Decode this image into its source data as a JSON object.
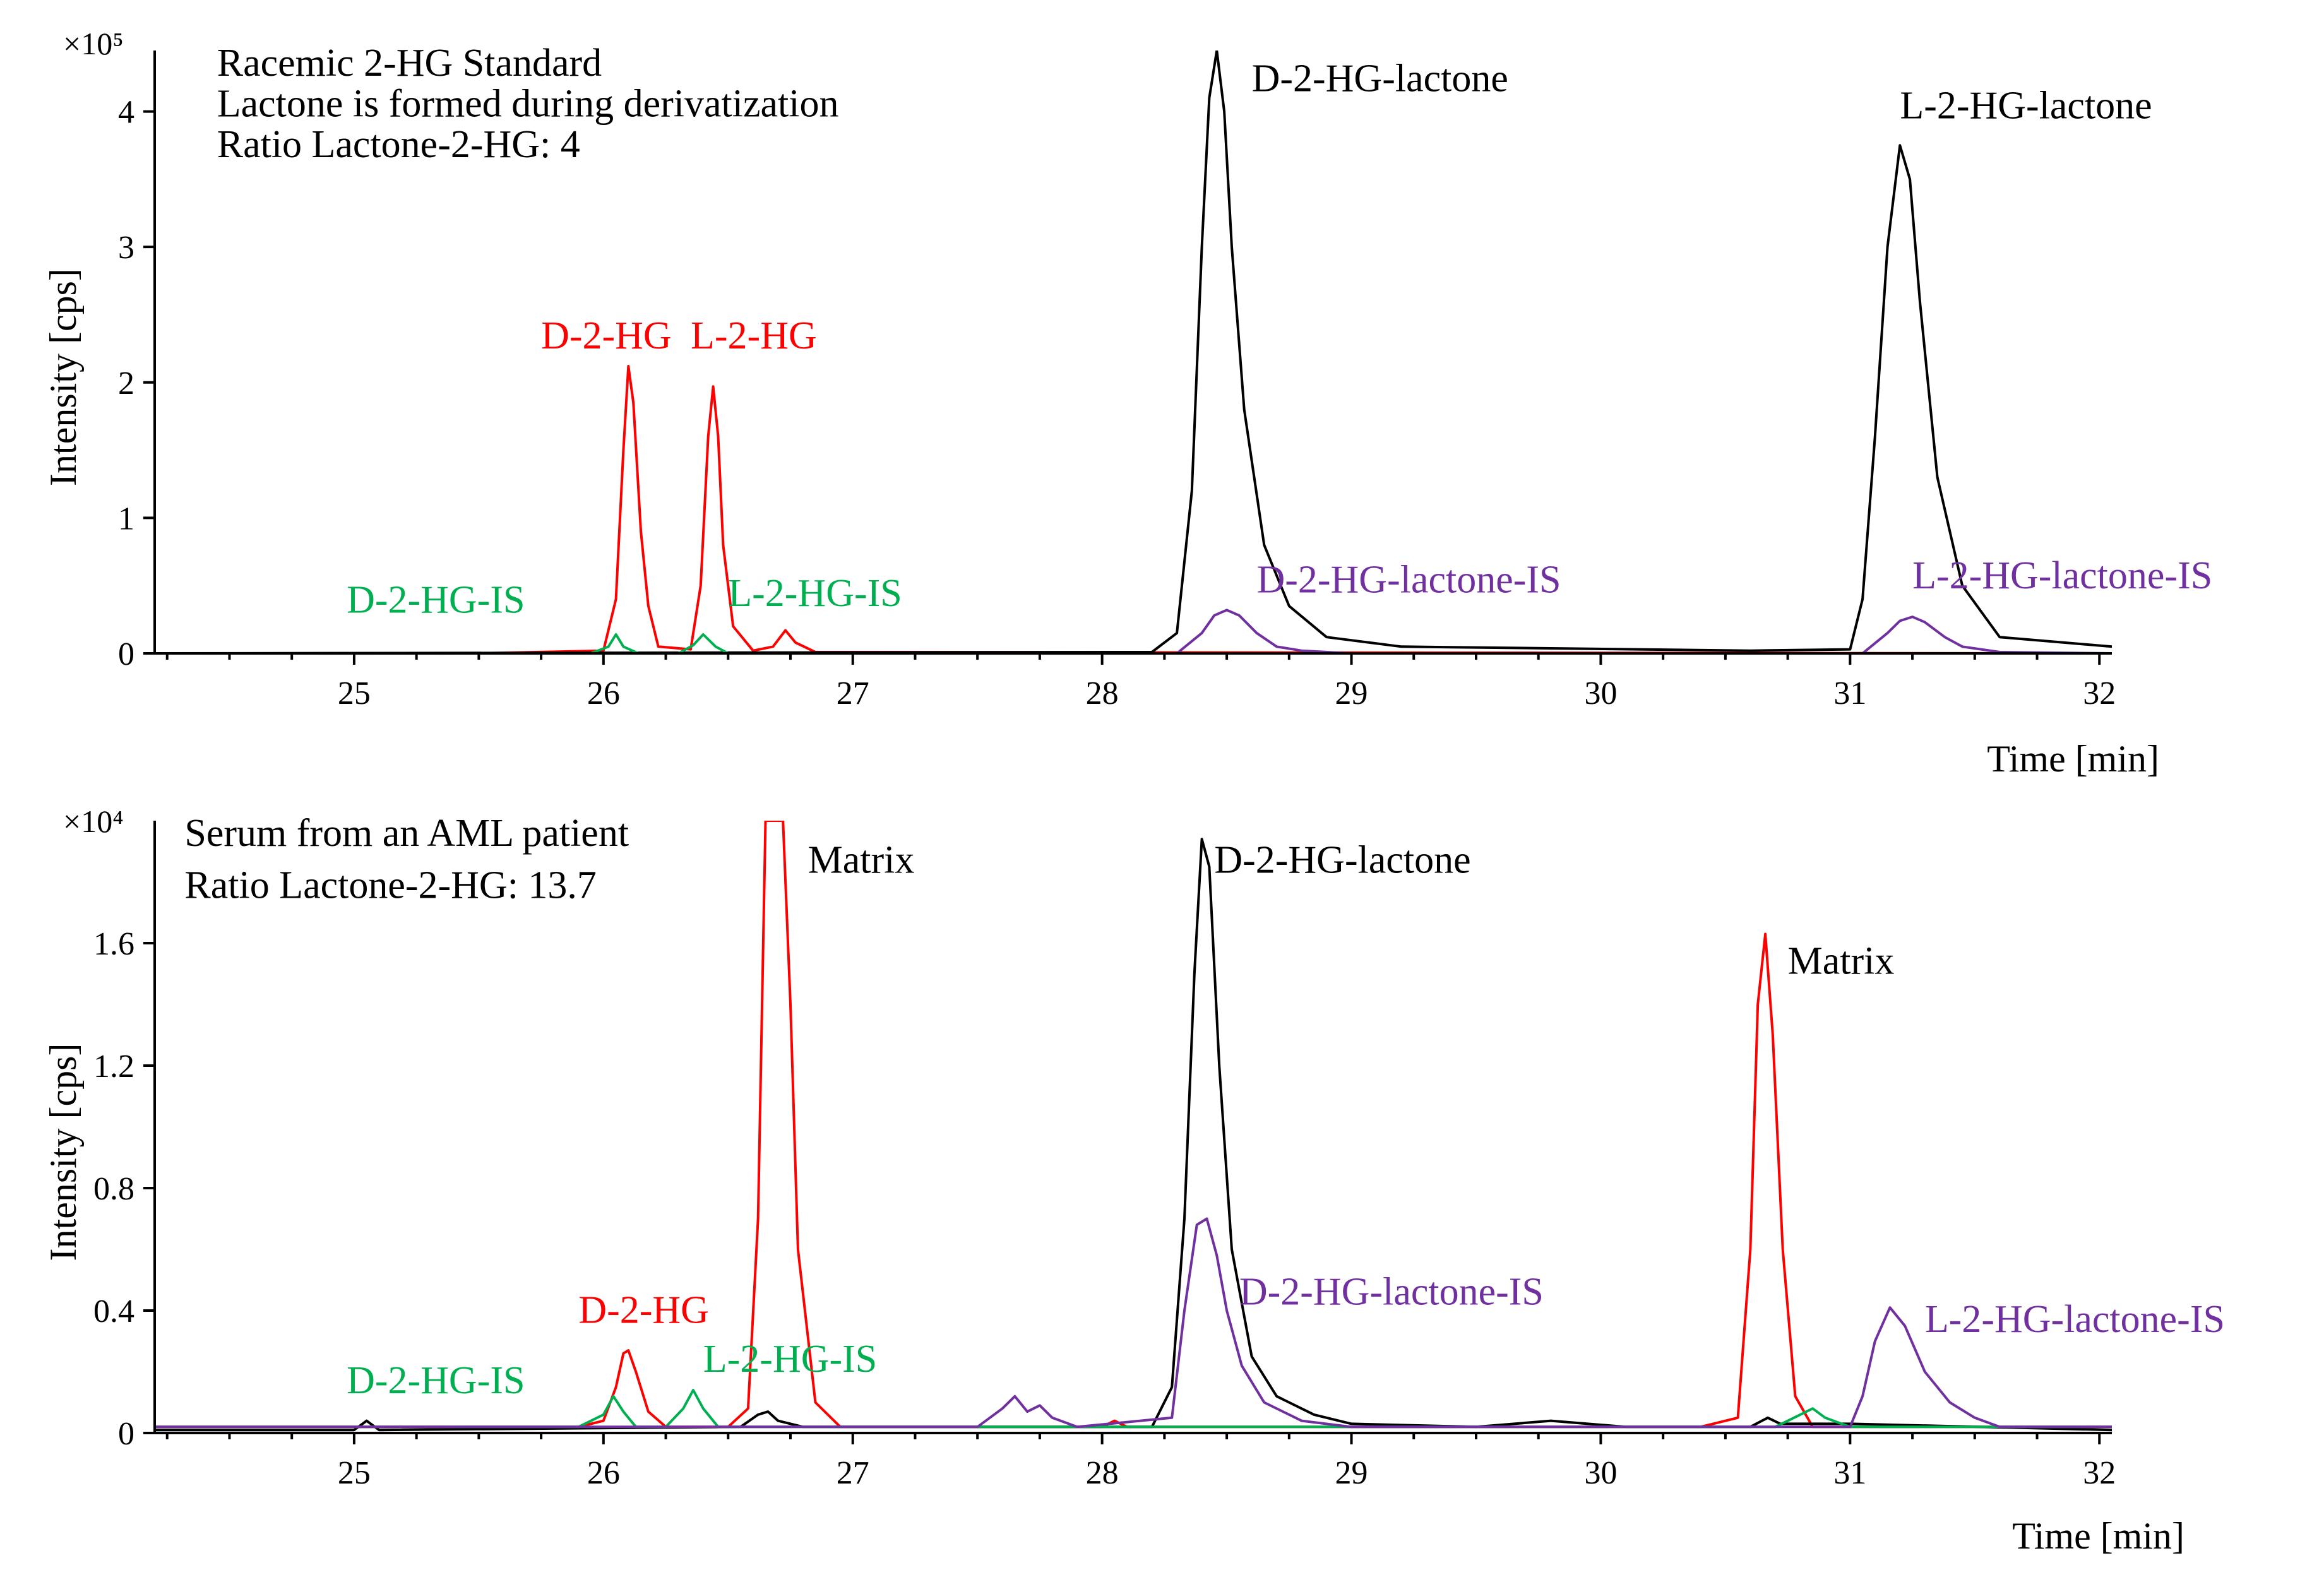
{
  "chart_data": [
    {
      "type": "line",
      "multiplier": "×10⁵",
      "xlabel": "Time [min]",
      "ylabel": "Intensity [cps]",
      "xlim": [
        24.2,
        32.05
      ],
      "ylim": [
        0,
        4.45
      ],
      "xticks": [
        25,
        26,
        27,
        28,
        29,
        30,
        31,
        32
      ],
      "yticks": [
        0,
        1,
        2,
        3,
        4
      ],
      "ytick_labels": [
        "0",
        "1",
        "2",
        "3",
        "4"
      ],
      "texts": [
        {
          "text": "Racemic 2-HG Standard",
          "color": "#000000",
          "x": 24.45,
          "y": 4.45
        },
        {
          "text": "Lactone is formed during derivatization",
          "color": "#000000",
          "x": 24.45,
          "y": 4.15
        },
        {
          "text": "Ratio Lactone-2-HG: 4",
          "color": "#000000",
          "x": 24.45,
          "y": 3.85
        }
      ],
      "annotations": [
        {
          "text": "D-2-HG",
          "color": "#ff0000",
          "x": 25.75,
          "y": 2.25
        },
        {
          "text": "L-2-HG",
          "color": "#ff0000",
          "x": 26.35,
          "y": 2.25
        },
        {
          "text": "D-2-HG-IS",
          "color": "#00b050",
          "x": 24.97,
          "y": 0.3
        },
        {
          "text": "L-2-HG-IS",
          "color": "#00b050",
          "x": 26.5,
          "y": 0.35
        },
        {
          "text": "D-2-HG-lactone",
          "color": "#000000",
          "x": 28.6,
          "y": 4.15
        },
        {
          "text": "L-2-HG-lactone",
          "color": "#000000",
          "x": 31.2,
          "y": 3.95
        },
        {
          "text": "D-2-HG-lactone-IS",
          "color": "#7030a0",
          "x": 28.62,
          "y": 0.45
        },
        {
          "text": "L-2-HG-lactone-IS",
          "color": "#7030a0",
          "x": 31.25,
          "y": 0.48
        }
      ],
      "series": [
        {
          "color": "#ff0000",
          "x": [
            24.2,
            25.5,
            26.0,
            26.05,
            26.08,
            26.1,
            26.12,
            26.15,
            26.18,
            26.22,
            26.35,
            26.39,
            26.42,
            26.44,
            26.46,
            26.48,
            26.52,
            26.6,
            26.68,
            26.73,
            26.77,
            26.85,
            32.05
          ],
          "y": [
            0.0,
            0.0,
            0.02,
            0.4,
            1.5,
            2.12,
            1.85,
            0.9,
            0.35,
            0.05,
            0.03,
            0.5,
            1.6,
            1.97,
            1.6,
            0.8,
            0.2,
            0.02,
            0.05,
            0.17,
            0.08,
            0.01,
            0.0
          ]
        },
        {
          "color": "#000000",
          "x": [
            24.2,
            28.2,
            28.3,
            28.36,
            28.4,
            28.43,
            28.46,
            28.49,
            28.52,
            28.57,
            28.65,
            28.75,
            28.9,
            29.2,
            30.6,
            31.0,
            31.05,
            31.1,
            31.15,
            31.2,
            31.24,
            31.28,
            31.35,
            31.45,
            31.6,
            32.05
          ],
          "y": [
            0.0,
            0.01,
            0.15,
            1.2,
            3.0,
            4.1,
            4.45,
            4.0,
            3.0,
            1.8,
            0.8,
            0.35,
            0.12,
            0.05,
            0.02,
            0.03,
            0.4,
            1.6,
            3.0,
            3.75,
            3.5,
            2.6,
            1.3,
            0.5,
            0.12,
            0.05
          ]
        },
        {
          "color": "#00b050",
          "x": [
            24.2,
            25.95,
            26.02,
            26.05,
            26.08,
            26.14,
            26.3,
            26.36,
            26.4,
            26.45,
            26.5,
            32.05
          ],
          "y": [
            0.0,
            0.0,
            0.05,
            0.14,
            0.05,
            0.0,
            0.0,
            0.06,
            0.14,
            0.05,
            0.0,
            0.0
          ]
        },
        {
          "color": "#7030a0",
          "x": [
            24.2,
            28.3,
            28.4,
            28.45,
            28.5,
            28.55,
            28.62,
            28.7,
            28.8,
            29.0,
            31.05,
            31.15,
            31.2,
            31.25,
            31.3,
            31.38,
            31.45,
            31.6,
            32.05
          ],
          "y": [
            0.0,
            0.0,
            0.15,
            0.28,
            0.32,
            0.28,
            0.15,
            0.05,
            0.02,
            0.0,
            0.0,
            0.15,
            0.24,
            0.27,
            0.23,
            0.12,
            0.05,
            0.01,
            0.0
          ]
        }
      ]
    },
    {
      "type": "line",
      "multiplier": "×10⁴",
      "xlabel": "Time [min]",
      "ylabel": "Intensity [cps]",
      "xlim": [
        24.2,
        32.05
      ],
      "ylim": [
        0,
        2.0
      ],
      "xticks": [
        25,
        26,
        27,
        28,
        29,
        30,
        31,
        32
      ],
      "yticks": [
        0,
        0.4,
        0.8,
        1.2,
        1.6
      ],
      "ytick_labels": [
        "0",
        "0.4",
        "0.8",
        "1.2",
        "1.6"
      ],
      "texts": [
        {
          "text": "Serum from an AML patient",
          "color": "#000000",
          "x": 24.32,
          "y": 2.0
        },
        {
          "text": "Ratio Lactone-2-HG: 13.7",
          "color": "#000000",
          "x": 24.32,
          "y": 1.83
        }
      ],
      "annotations": [
        {
          "text": "D-2-HG",
          "color": "#ff0000",
          "x": 25.9,
          "y": 0.36
        },
        {
          "text": "D-2-HG-IS",
          "color": "#00b050",
          "x": 24.97,
          "y": 0.13
        },
        {
          "text": "L-2-HG-IS",
          "color": "#00b050",
          "x": 26.4,
          "y": 0.2
        },
        {
          "text": "Matrix",
          "color": "#000000",
          "x": 26.82,
          "y": 1.83
        },
        {
          "text": "D-2-HG-lactone",
          "color": "#000000",
          "x": 28.45,
          "y": 1.83
        },
        {
          "text": "Matrix",
          "color": "#000000",
          "x": 30.75,
          "y": 1.5
        },
        {
          "text": "D-2-HG-lactone-IS",
          "color": "#7030a0",
          "x": 28.55,
          "y": 0.42
        },
        {
          "text": "L-2-HG-lactone-IS",
          "color": "#7030a0",
          "x": 31.3,
          "y": 0.33
        }
      ],
      "series": [
        {
          "color": "#ff0000",
          "x": [
            24.2,
            25.0,
            25.9,
            26.0,
            26.05,
            26.08,
            26.1,
            26.13,
            26.18,
            26.25,
            26.5,
            26.58,
            26.62,
            26.65,
            26.68,
            26.72,
            26.75,
            26.78,
            26.85,
            26.95,
            28.0,
            28.05,
            28.1,
            30.4,
            30.55,
            30.6,
            30.63,
            30.66,
            30.69,
            30.73,
            30.78,
            30.85,
            32.05
          ],
          "y": [
            0.02,
            0.02,
            0.02,
            0.04,
            0.15,
            0.26,
            0.27,
            0.2,
            0.07,
            0.02,
            0.02,
            0.08,
            0.7,
            2.0,
            2.0,
            2.0,
            1.4,
            0.6,
            0.1,
            0.02,
            0.02,
            0.04,
            0.02,
            0.02,
            0.05,
            0.6,
            1.4,
            1.63,
            1.3,
            0.6,
            0.12,
            0.02,
            0.02
          ]
        },
        {
          "color": "#000000",
          "x": [
            24.2,
            25.0,
            25.05,
            25.1,
            26.55,
            26.62,
            26.66,
            26.7,
            26.8,
            28.2,
            28.28,
            28.33,
            28.37,
            28.4,
            28.43,
            28.47,
            28.52,
            28.6,
            28.7,
            28.85,
            29.0,
            29.5,
            29.8,
            30.1,
            30.6,
            30.67,
            30.72,
            31.0,
            32.05
          ],
          "y": [
            0.01,
            0.01,
            0.04,
            0.01,
            0.02,
            0.06,
            0.07,
            0.04,
            0.02,
            0.02,
            0.15,
            0.7,
            1.5,
            1.94,
            1.85,
            1.2,
            0.6,
            0.25,
            0.12,
            0.06,
            0.03,
            0.02,
            0.04,
            0.02,
            0.02,
            0.05,
            0.03,
            0.03,
            0.01
          ]
        },
        {
          "color": "#00b050",
          "x": [
            24.2,
            25.9,
            26.0,
            26.04,
            26.08,
            26.13,
            26.25,
            26.32,
            26.36,
            26.4,
            26.46,
            26.6,
            30.7,
            30.8,
            30.85,
            30.9,
            31.0,
            32.05
          ],
          "y": [
            0.02,
            0.02,
            0.06,
            0.12,
            0.07,
            0.02,
            0.02,
            0.08,
            0.14,
            0.08,
            0.02,
            0.02,
            0.02,
            0.06,
            0.08,
            0.05,
            0.02,
            0.02
          ]
        },
        {
          "color": "#7030a0",
          "x": [
            24.2,
            27.5,
            27.6,
            27.65,
            27.7,
            27.75,
            27.8,
            27.9,
            28.28,
            28.33,
            28.38,
            28.42,
            28.46,
            28.5,
            28.56,
            28.65,
            28.8,
            29.0,
            31.0,
            31.05,
            31.1,
            31.16,
            31.22,
            31.3,
            31.4,
            31.5,
            31.6,
            32.05
          ],
          "y": [
            0.02,
            0.02,
            0.08,
            0.12,
            0.07,
            0.09,
            0.05,
            0.02,
            0.05,
            0.4,
            0.68,
            0.7,
            0.58,
            0.4,
            0.22,
            0.1,
            0.04,
            0.02,
            0.02,
            0.12,
            0.3,
            0.41,
            0.35,
            0.2,
            0.1,
            0.05,
            0.02,
            0.02
          ]
        }
      ]
    }
  ]
}
